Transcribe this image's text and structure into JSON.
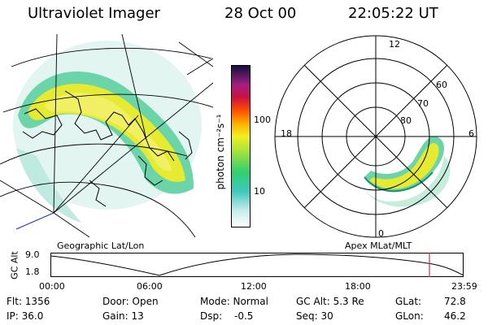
{
  "header": {
    "title": "Ultraviolet Imager",
    "date": "28 Oct 00",
    "time": "22:05:22 UT"
  },
  "colorbar": {
    "unit_label": "photon cm⁻²s⁻¹",
    "ticks": [
      "100",
      "10"
    ],
    "scale": "log"
  },
  "polar_map": {
    "mlt_labels": [
      "12",
      "18",
      "6",
      "0"
    ],
    "mlat_labels": [
      "60",
      "70",
      "80"
    ]
  },
  "geo_map": {
    "label": "Geographic Lat/Lon"
  },
  "apex_label": "Apex MLat/MLT",
  "orbit": {
    "ylabel": "GC Alt",
    "y_ticks": [
      "9.0",
      "1.8"
    ],
    "x_ticks": [
      "00:00",
      "06:00",
      "12:00",
      "18:00",
      "23:59"
    ]
  },
  "status": {
    "flt": "Flt: 1356",
    "door": "Door: Open",
    "mode": "Mode: Normal",
    "gc_alt": "GC Alt: 5.3 Re",
    "glat": "GLat:",
    "glat_val": "72.8",
    "ip": "IP: 36.0",
    "gain": "Gain: 13",
    "dsp": "Dsp:",
    "dsp_val": "-0.5",
    "seq": "Seq: 30",
    "glon": "GLon:",
    "glon_val": "46.2"
  },
  "colors": {
    "marker": "#cc3333",
    "aurora_high": "#e8e820",
    "aurora_mid": "#40c8a0"
  }
}
